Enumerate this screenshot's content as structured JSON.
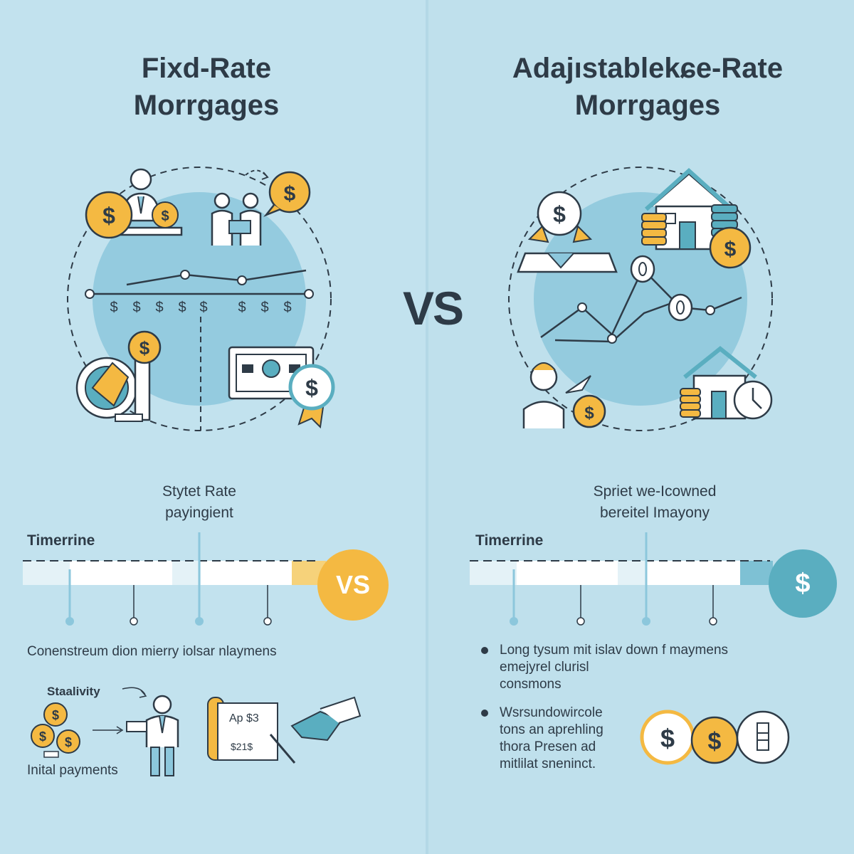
{
  "left": {
    "title_lines": [
      "Fixd-Rate",
      "Morrgages"
    ],
    "subtitle_lines": [
      "Stytet Rate",
      "payingient"
    ],
    "timeline_label": "Timerrine",
    "timeline_badge": "VS",
    "description": "Conenstreum dion mierry iolsar nlaymens",
    "stability_label": "Staalivity",
    "initial_payments_label": "Inital  payments",
    "dollar_row": [
      "$",
      "$",
      "$",
      "$",
      "$",
      "$",
      "$",
      "$"
    ]
  },
  "center": {
    "vs_label": "VS"
  },
  "right": {
    "title_lines": [
      "Adajıstablekɕe-Rate",
      "Morrgages"
    ],
    "subtitle_lines": [
      "Spriet we-Icowned",
      "bereitel Imayony"
    ],
    "timeline_label": "Timerrine",
    "timeline_badge": "$",
    "bullets": [
      {
        "lines": [
          "Long tysum mit islav down f maymens",
          "emejyrel clurisl",
          "consmons"
        ]
      },
      {
        "lines": [
          "Wsrsundowircole",
          "tons an aprehling",
          "thora  Presen ad",
          "mitlilat sneninct."
        ]
      }
    ]
  },
  "illustration_text": {
    "coin_symbol": "$",
    "doc_text_1": "Ap  $3",
    "doc_text_2": "$21$"
  },
  "colors": {
    "accent_yellow": "#f4b942",
    "accent_teal": "#5aaec0",
    "outline": "#2e3b47",
    "circle_fill": "#8cc7dc"
  }
}
